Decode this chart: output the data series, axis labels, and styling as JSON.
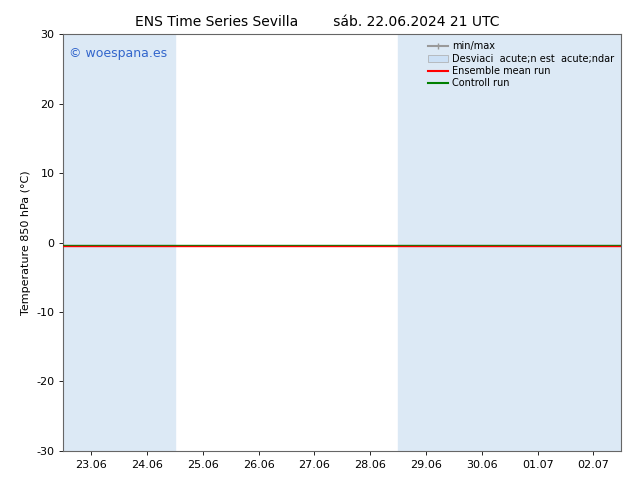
{
  "title_left": "ENS Time Series Sevilla",
  "title_right": "sáb. 22.06.2024 21 UTC",
  "ylabel": "Temperature 850 hPa (°C)",
  "ylim": [
    -30,
    30
  ],
  "yticks": [
    -30,
    -20,
    -10,
    0,
    10,
    20,
    30
  ],
  "x_labels": [
    "23.06",
    "24.06",
    "25.06",
    "26.06",
    "27.06",
    "28.06",
    "29.06",
    "30.06",
    "01.07",
    "02.07"
  ],
  "x_min": 0,
  "x_max": 9,
  "background_color": "#ffffff",
  "plot_bg_color": "#ffffff",
  "shaded_bands": [
    {
      "x_start": 0.0,
      "x_end": 1.0,
      "color": "#dce9f5"
    },
    {
      "x_start": 6.0,
      "x_end": 7.0,
      "color": "#dce9f5"
    },
    {
      "x_start": 8.0,
      "x_end": 9.0,
      "color": "#dce9f5"
    }
  ],
  "ensemble_mean_color": "#ff0000",
  "control_run_color": "#008000",
  "minmax_color": "#999999",
  "std_color": "#cce0f5",
  "watermark_text": "© woespana.es",
  "watermark_color": "#3366cc",
  "watermark_fontsize": 9,
  "legend_labels": [
    "min/max",
    "Desviaci  acute;n est  acute;ndar",
    "Ensemble mean run",
    "Controll run"
  ],
  "title_fontsize": 10,
  "tick_fontsize": 8,
  "ylabel_fontsize": 8,
  "legend_fontsize": 7,
  "figsize": [
    6.34,
    4.9
  ],
  "dpi": 100
}
